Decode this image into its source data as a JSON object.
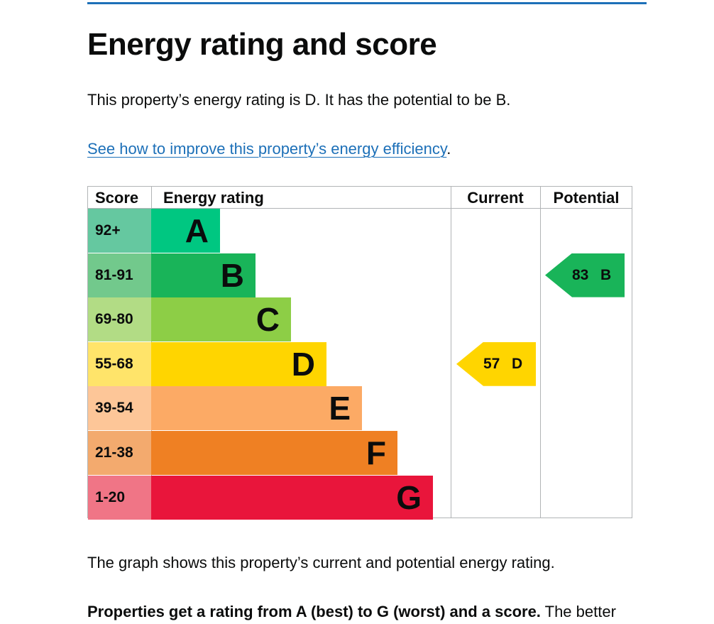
{
  "heading": "Energy rating and score",
  "intro": "This property’s energy rating is D. It has the potential to be B.",
  "improve_link": "See how to improve this property’s energy efficiency",
  "improve_link_suffix": ".",
  "table_headers": {
    "score": "Score",
    "rating": "Energy rating",
    "current": "Current",
    "potential": "Potential"
  },
  "chart_data": {
    "type": "bar",
    "categories": [
      "A",
      "B",
      "C",
      "D",
      "E",
      "F",
      "G"
    ],
    "score_ranges": [
      "92+",
      "81-91",
      "69-80",
      "55-68",
      "39-54",
      "21-38",
      "1-20"
    ],
    "band_colors": [
      "#00c781",
      "#19b459",
      "#8dce46",
      "#ffd500",
      "#fcaa65",
      "#ef8023",
      "#e9153b"
    ],
    "score_cell_colors": [
      "#65c8a0",
      "#72c98c",
      "#b2dc85",
      "#ffe46a",
      "#fdc698",
      "#f3aa6e",
      "#f07586"
    ],
    "current": {
      "score": "57",
      "band": "D"
    },
    "potential": {
      "score": "83",
      "band": "B"
    }
  },
  "description": "The graph shows this property’s current and potential energy rating.",
  "footer_bold": "Properties get a rating from A (best) to G (worst) and a score.",
  "footer_rest": " The better"
}
